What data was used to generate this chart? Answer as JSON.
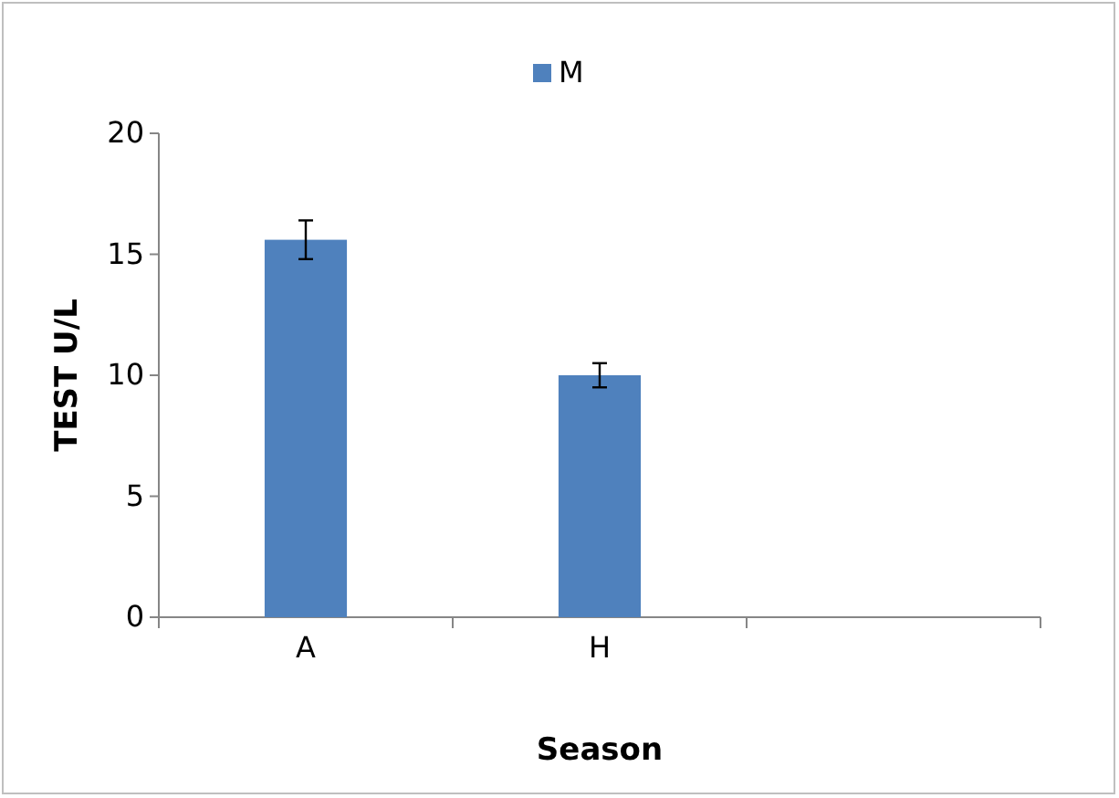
{
  "chart_data": {
    "type": "bar",
    "xlabel": "Season",
    "ylabel": "TEST U/L",
    "categories": [
      "A",
      "H",
      null
    ],
    "series": [
      {
        "name": "M",
        "color": "#4f81bd",
        "values": [
          15.6,
          10.0,
          null
        ],
        "errors": [
          0.8,
          0.5,
          null
        ]
      }
    ],
    "ylim": [
      0,
      20
    ],
    "yticks": [
      0,
      5,
      10,
      15,
      20
    ],
    "grid": false,
    "legend": "top"
  }
}
